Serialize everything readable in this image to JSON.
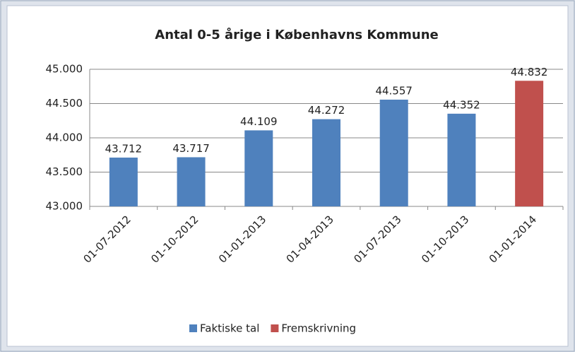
{
  "chart_data": {
    "type": "bar",
    "title": "Antal 0-5 årige i Københavns Kommune",
    "categories": [
      "01-07-2012",
      "01-10-2012",
      "01-01-2013",
      "01-04-2013",
      "01-07-2013",
      "01-10-2013",
      "01-01-2014"
    ],
    "series": [
      {
        "name": "Faktiske tal",
        "color": "#4f81bd",
        "values": [
          43712,
          43717,
          44109,
          44272,
          44557,
          44352,
          null
        ],
        "value_labels": [
          "43.712",
          "43.717",
          "44.109",
          "44.272",
          "44.557",
          "44.352",
          null
        ]
      },
      {
        "name": "Fremskrivning",
        "color": "#c0504d",
        "values": [
          null,
          null,
          null,
          null,
          null,
          null,
          44832
        ],
        "value_labels": [
          null,
          null,
          null,
          null,
          null,
          null,
          "44.832"
        ]
      }
    ],
    "ylim": [
      43000,
      45000
    ],
    "yticks": [
      {
        "value": 43000,
        "label": "43.000"
      },
      {
        "value": 43500,
        "label": "43.500"
      },
      {
        "value": 44000,
        "label": "44.000"
      },
      {
        "value": 44500,
        "label": "44.500"
      },
      {
        "value": 45000,
        "label": "45.000"
      }
    ],
    "grid": true,
    "legend": "bottom"
  }
}
